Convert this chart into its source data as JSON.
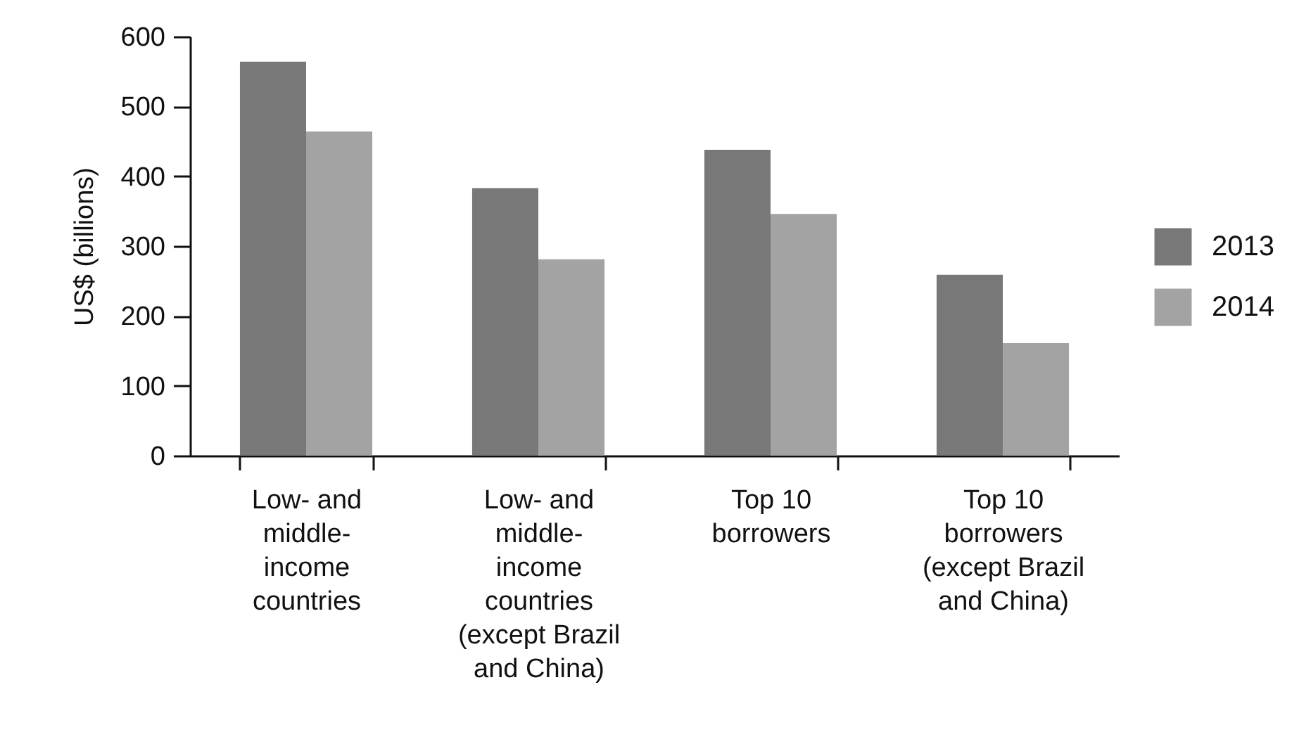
{
  "chart_data": {
    "type": "bar",
    "ylabel": "US$ (billions)",
    "categories": [
      "Low- and\nmiddle-\nincome\ncountries",
      "Low- and\nmiddle-\nincome\ncountries\n(except Brazil\nand China)",
      "Top 10\nborrowers",
      "Top 10\nborrowers\n(except Brazil\nand China)"
    ],
    "series": [
      {
        "name": "2013",
        "color": "#787878",
        "values": [
          564,
          383,
          438,
          259
        ]
      },
      {
        "name": "2014",
        "color": "#a3a3a3",
        "values": [
          464,
          281,
          346,
          161
        ]
      }
    ],
    "ylim": [
      0,
      600
    ],
    "yticks": [
      0,
      100,
      200,
      300,
      400,
      500,
      600
    ],
    "grid": false,
    "legend": "right"
  }
}
